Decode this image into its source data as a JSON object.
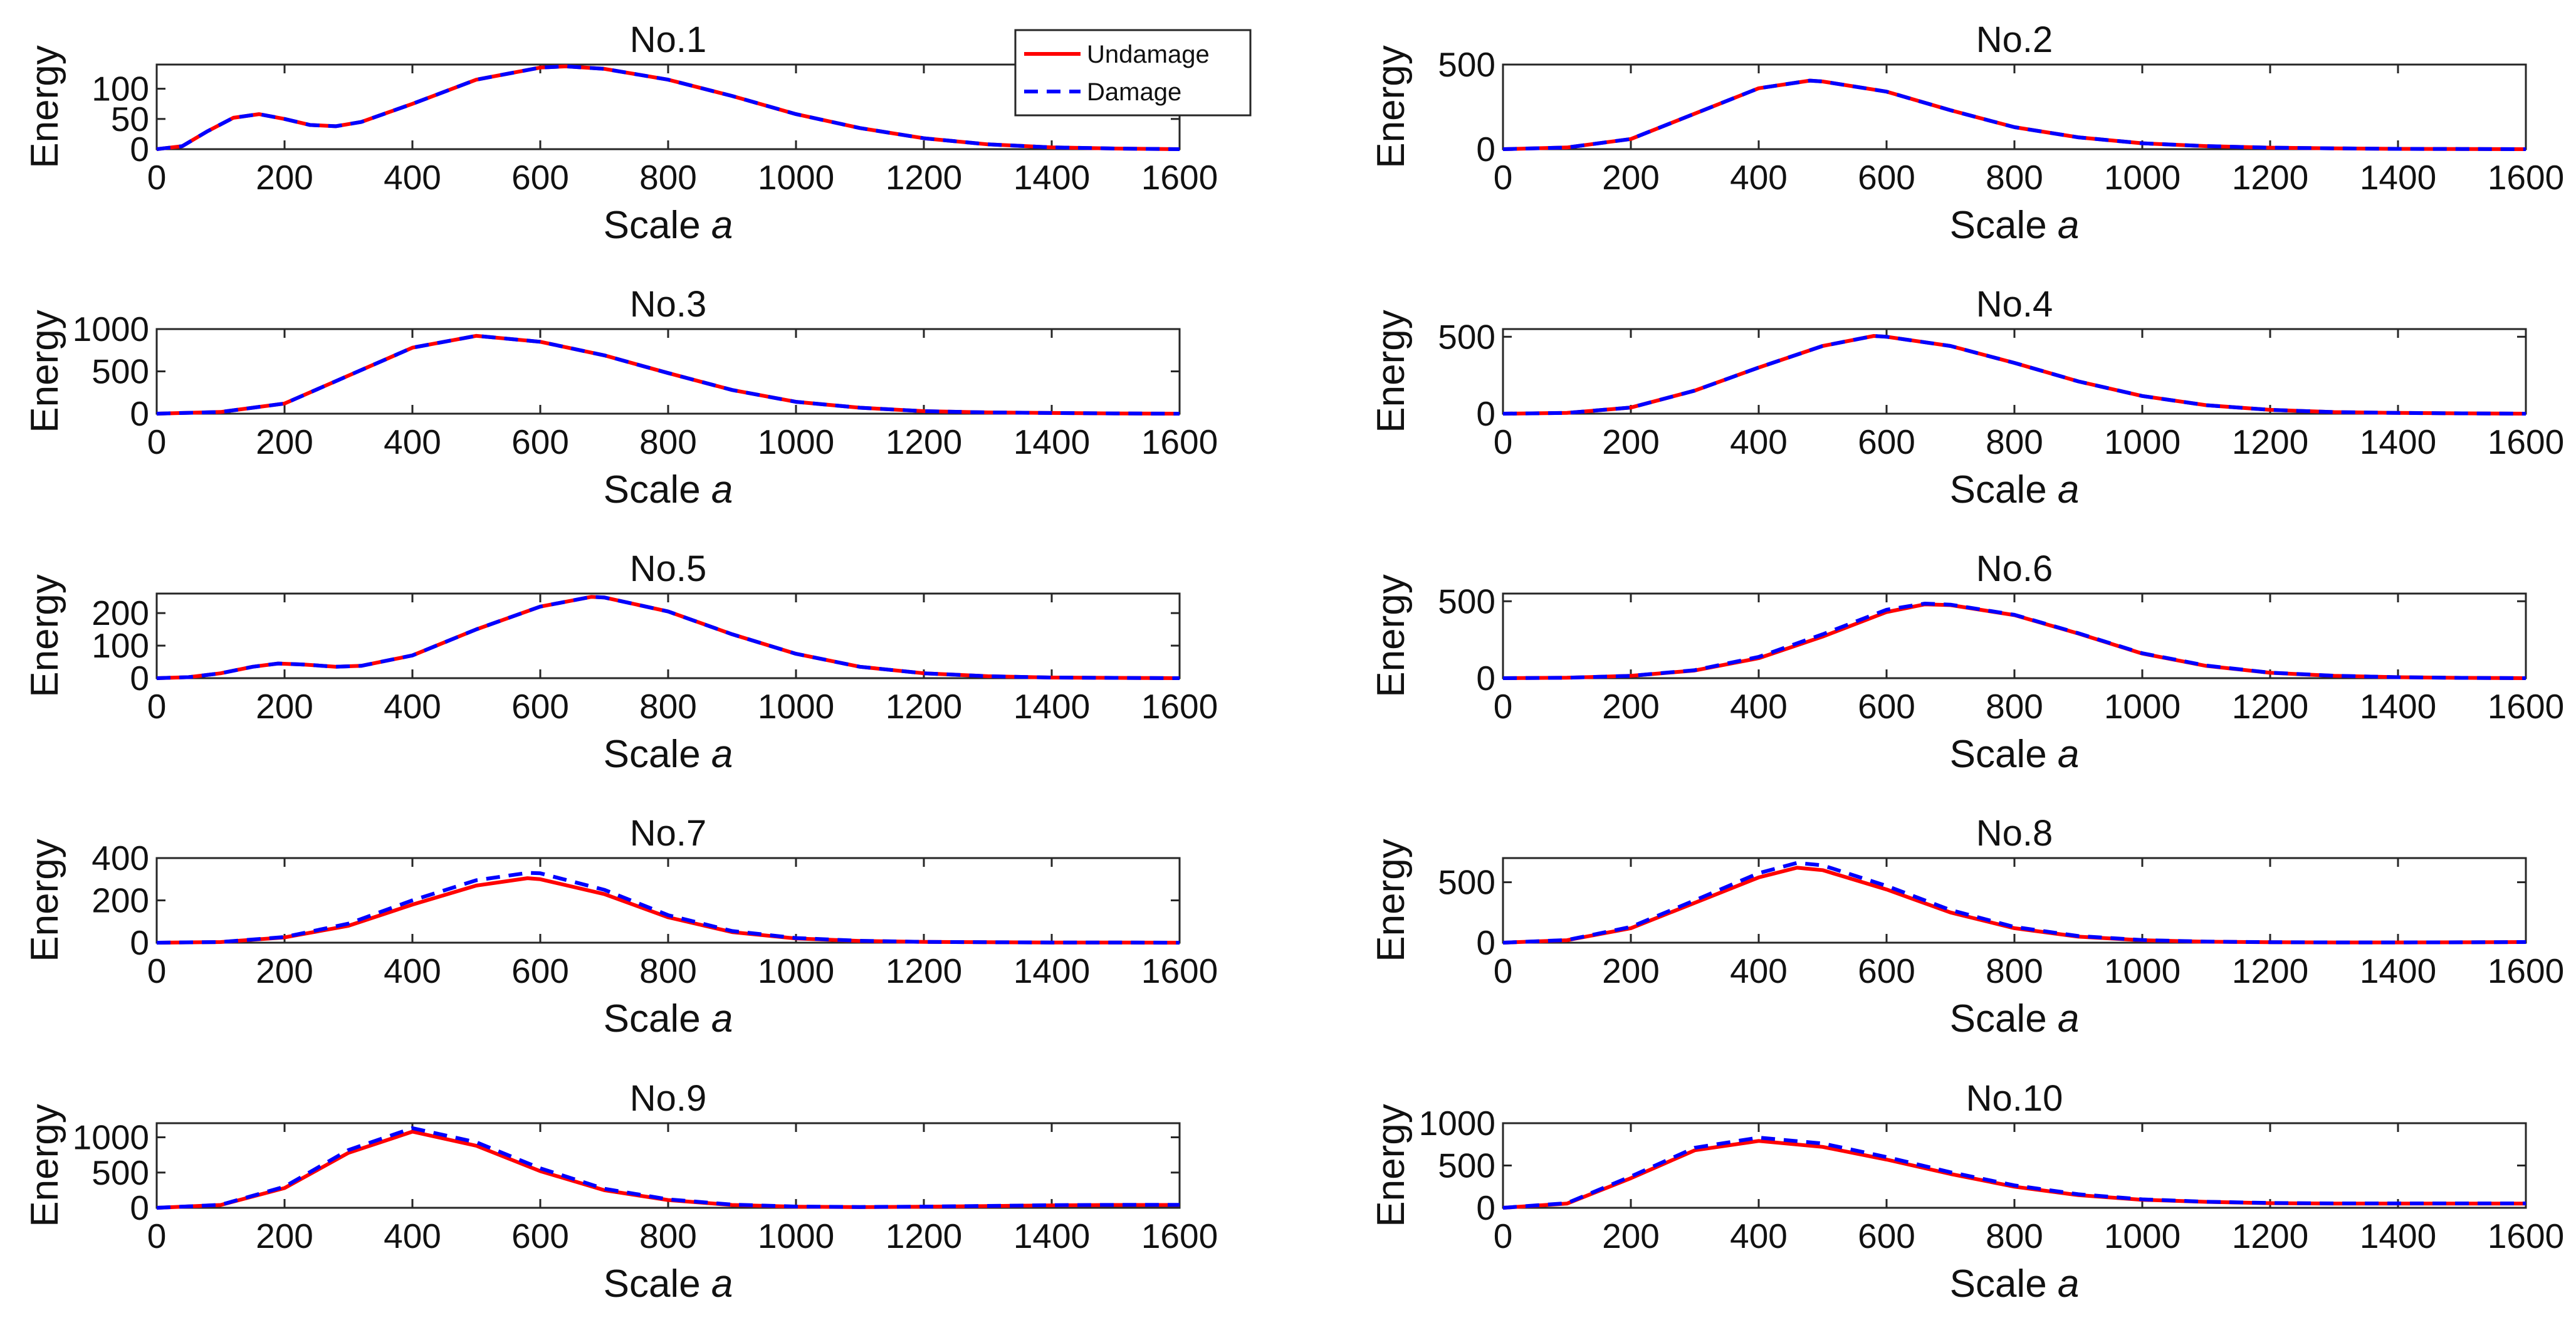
{
  "figure": {
    "legend": {
      "undamage_label": "Undamage",
      "damage_label": "Damage",
      "placement": "top-right of first panel"
    },
    "colors": {
      "undamage": "#ff0000",
      "damage": "#0000ff",
      "axis": "#262626"
    }
  },
  "chart_data": [
    {
      "type": "line",
      "title": "No.1",
      "xlabel": "Scale",
      "xlabel_var": "a",
      "ylabel": "Energy",
      "xlim": [
        0,
        1600
      ],
      "ylim": [
        0,
        140
      ],
      "xticks": [
        0,
        200,
        400,
        600,
        800,
        1000,
        1200,
        1400,
        1600
      ],
      "yticks": [
        0,
        50,
        100
      ],
      "x": [
        0,
        40,
        80,
        120,
        160,
        200,
        240,
        280,
        320,
        400,
        500,
        600,
        640,
        700,
        800,
        900,
        1000,
        1100,
        1200,
        1300,
        1400,
        1500,
        1600
      ],
      "series": [
        {
          "name": "Undamage",
          "values": [
            0,
            5,
            30,
            52,
            58,
            50,
            40,
            38,
            45,
            75,
            115,
            135,
            137,
            133,
            115,
            88,
            58,
            35,
            18,
            8,
            3,
            1,
            0
          ]
        },
        {
          "name": "Damage",
          "values": [
            0,
            5,
            30,
            52,
            58,
            50,
            40,
            38,
            45,
            75,
            115,
            135,
            137,
            133,
            115,
            88,
            58,
            35,
            18,
            8,
            3,
            1,
            0
          ]
        }
      ]
    },
    {
      "type": "line",
      "title": "No.2",
      "xlabel": "Scale",
      "xlabel_var": "a",
      "ylabel": "Energy",
      "xlim": [
        0,
        1600
      ],
      "ylim": [
        0,
        500
      ],
      "xticks": [
        0,
        200,
        400,
        600,
        800,
        1000,
        1200,
        1400,
        1600
      ],
      "yticks": [
        0,
        500
      ],
      "x": [
        0,
        100,
        200,
        300,
        400,
        480,
        500,
        600,
        700,
        800,
        900,
        1000,
        1100,
        1200,
        1300,
        1400,
        1500,
        1600
      ],
      "series": [
        {
          "name": "Undamage",
          "values": [
            0,
            10,
            60,
            210,
            360,
            405,
            400,
            340,
            230,
            130,
            70,
            35,
            18,
            9,
            5,
            2,
            1,
            0
          ]
        },
        {
          "name": "Damage",
          "values": [
            0,
            10,
            60,
            210,
            360,
            405,
            400,
            340,
            230,
            130,
            70,
            35,
            18,
            9,
            5,
            2,
            1,
            0
          ]
        }
      ]
    },
    {
      "type": "line",
      "title": "No.3",
      "xlabel": "Scale",
      "xlabel_var": "a",
      "ylabel": "Energy",
      "xlim": [
        0,
        1600
      ],
      "ylim": [
        0,
        1000
      ],
      "xticks": [
        0,
        200,
        400,
        600,
        800,
        1000,
        1200,
        1400,
        1600
      ],
      "yticks": [
        0,
        500,
        1000
      ],
      "x": [
        0,
        100,
        200,
        300,
        400,
        500,
        600,
        700,
        800,
        900,
        1000,
        1100,
        1200,
        1300,
        1400,
        1500,
        1600
      ],
      "series": [
        {
          "name": "Undamage",
          "values": [
            0,
            20,
            120,
            450,
            780,
            920,
            850,
            690,
            480,
            280,
            140,
            70,
            30,
            15,
            8,
            3,
            0
          ]
        },
        {
          "name": "Damage",
          "values": [
            0,
            20,
            120,
            450,
            780,
            920,
            850,
            690,
            480,
            280,
            140,
            70,
            30,
            15,
            8,
            3,
            0
          ]
        }
      ]
    },
    {
      "type": "line",
      "title": "No.4",
      "xlabel": "Scale",
      "xlabel_var": "a",
      "ylabel": "Energy",
      "xlim": [
        0,
        1600
      ],
      "ylim": [
        0,
        550
      ],
      "xticks": [
        0,
        200,
        400,
        600,
        800,
        1000,
        1200,
        1400,
        1600
      ],
      "yticks": [
        0,
        500
      ],
      "x": [
        0,
        100,
        200,
        300,
        400,
        500,
        580,
        600,
        700,
        800,
        900,
        1000,
        1100,
        1200,
        1300,
        1400,
        1500,
        1600
      ],
      "series": [
        {
          "name": "Undamage",
          "values": [
            0,
            5,
            40,
            150,
            300,
            440,
            505,
            500,
            440,
            330,
            210,
            115,
            55,
            25,
            10,
            5,
            2,
            0
          ]
        },
        {
          "name": "Damage",
          "values": [
            0,
            5,
            40,
            150,
            300,
            440,
            505,
            500,
            440,
            330,
            210,
            115,
            55,
            25,
            10,
            5,
            2,
            0
          ]
        }
      ]
    },
    {
      "type": "line",
      "title": "No.5",
      "xlabel": "Scale",
      "xlabel_var": "a",
      "ylabel": "Energy",
      "xlim": [
        0,
        1600
      ],
      "ylim": [
        0,
        260
      ],
      "xticks": [
        0,
        200,
        400,
        600,
        800,
        1000,
        1200,
        1400,
        1600
      ],
      "yticks": [
        0,
        100,
        200
      ],
      "x": [
        0,
        50,
        100,
        150,
        190,
        230,
        280,
        320,
        400,
        500,
        600,
        680,
        700,
        800,
        900,
        1000,
        1100,
        1200,
        1300,
        1400,
        1500,
        1600
      ],
      "series": [
        {
          "name": "Undamage",
          "values": [
            0,
            3,
            15,
            35,
            45,
            42,
            35,
            38,
            70,
            150,
            220,
            250,
            248,
            205,
            135,
            75,
            35,
            15,
            6,
            2,
            1,
            0
          ]
        },
        {
          "name": "Damage",
          "values": [
            0,
            3,
            15,
            35,
            45,
            42,
            35,
            38,
            70,
            150,
            220,
            250,
            248,
            205,
            135,
            75,
            35,
            15,
            6,
            2,
            1,
            0
          ]
        }
      ]
    },
    {
      "type": "line",
      "title": "No.6",
      "xlabel": "Scale",
      "xlabel_var": "a",
      "ylabel": "Energy",
      "xlim": [
        0,
        1600
      ],
      "ylim": [
        0,
        550
      ],
      "xticks": [
        0,
        200,
        400,
        600,
        800,
        1000,
        1200,
        1400,
        1600
      ],
      "yticks": [
        0,
        500
      ],
      "x": [
        0,
        100,
        200,
        300,
        400,
        500,
        600,
        660,
        700,
        800,
        900,
        1000,
        1100,
        1200,
        1300,
        1400,
        1500,
        1600
      ],
      "series": [
        {
          "name": "Undamage",
          "values": [
            0,
            3,
            15,
            50,
            130,
            270,
            430,
            480,
            475,
            410,
            290,
            160,
            80,
            35,
            15,
            6,
            2,
            0
          ]
        },
        {
          "name": "Damage",
          "values": [
            0,
            3,
            15,
            52,
            138,
            285,
            445,
            485,
            478,
            412,
            292,
            162,
            82,
            36,
            16,
            6,
            2,
            0
          ]
        }
      ]
    },
    {
      "type": "line",
      "title": "No.7",
      "xlabel": "Scale",
      "xlabel_var": "a",
      "ylabel": "Energy",
      "xlim": [
        0,
        1600
      ],
      "ylim": [
        0,
        400
      ],
      "xticks": [
        0,
        200,
        400,
        600,
        800,
        1000,
        1200,
        1400,
        1600
      ],
      "yticks": [
        0,
        200,
        400
      ],
      "x": [
        0,
        100,
        200,
        300,
        400,
        500,
        580,
        600,
        700,
        800,
        900,
        1000,
        1100,
        1200,
        1300,
        1400,
        1500,
        1600
      ],
      "series": [
        {
          "name": "Undamage",
          "values": [
            0,
            3,
            25,
            80,
            180,
            270,
            305,
            300,
            230,
            120,
            50,
            20,
            8,
            4,
            2,
            1,
            1,
            0
          ]
        },
        {
          "name": "Damage",
          "values": [
            0,
            3,
            27,
            90,
            200,
            295,
            330,
            328,
            250,
            130,
            55,
            22,
            9,
            4,
            2,
            1,
            1,
            0
          ]
        }
      ]
    },
    {
      "type": "line",
      "title": "No.8",
      "xlabel": "Scale",
      "xlabel_var": "a",
      "ylabel": "Energy",
      "xlim": [
        0,
        1600
      ],
      "ylim": [
        0,
        700
      ],
      "xticks": [
        0,
        200,
        400,
        600,
        800,
        1000,
        1200,
        1400,
        1600
      ],
      "yticks": [
        0,
        500
      ],
      "x": [
        0,
        100,
        200,
        300,
        400,
        460,
        500,
        600,
        700,
        800,
        900,
        1000,
        1100,
        1200,
        1300,
        1400,
        1500,
        1600
      ],
      "series": [
        {
          "name": "Undamage",
          "values": [
            0,
            20,
            120,
            330,
            540,
            620,
            600,
            440,
            250,
            120,
            50,
            20,
            8,
            4,
            2,
            2,
            3,
            5
          ]
        },
        {
          "name": "Damage",
          "values": [
            0,
            22,
            130,
            350,
            575,
            660,
            640,
            470,
            270,
            130,
            55,
            22,
            9,
            4,
            2,
            2,
            3,
            5
          ]
        }
      ]
    },
    {
      "type": "line",
      "title": "No.9",
      "xlabel": "Scale",
      "xlabel_var": "a",
      "ylabel": "Energy",
      "xlim": [
        0,
        1600
      ],
      "ylim": [
        0,
        1200
      ],
      "xticks": [
        0,
        200,
        400,
        600,
        800,
        1000,
        1200,
        1400,
        1600
      ],
      "yticks": [
        0,
        500,
        1000
      ],
      "x": [
        0,
        100,
        200,
        300,
        400,
        500,
        600,
        700,
        800,
        900,
        1000,
        1100,
        1200,
        1300,
        1400,
        1500,
        1600
      ],
      "series": [
        {
          "name": "Undamage",
          "values": [
            0,
            40,
            280,
            780,
            1080,
            880,
            520,
            250,
            110,
            40,
            15,
            10,
            15,
            25,
            35,
            40,
            40
          ]
        },
        {
          "name": "Damage",
          "values": [
            0,
            42,
            300,
            820,
            1130,
            930,
            560,
            270,
            120,
            45,
            18,
            12,
            17,
            27,
            37,
            42,
            42
          ]
        }
      ]
    },
    {
      "type": "line",
      "title": "No.10",
      "xlabel": "Scale",
      "xlabel_var": "a",
      "ylabel": "Energy",
      "xlim": [
        0,
        1600
      ],
      "ylim": [
        0,
        1000
      ],
      "xticks": [
        0,
        200,
        400,
        600,
        800,
        1000,
        1200,
        1400,
        1600
      ],
      "yticks": [
        0,
        500,
        1000
      ],
      "x": [
        0,
        100,
        200,
        300,
        400,
        500,
        600,
        700,
        800,
        900,
        1000,
        1100,
        1200,
        1300,
        1400,
        1500,
        1600
      ],
      "series": [
        {
          "name": "Undamage",
          "values": [
            0,
            50,
            350,
            680,
            790,
            720,
            570,
            400,
            250,
            150,
            95,
            70,
            55,
            50,
            50,
            50,
            50
          ]
        },
        {
          "name": "Damage",
          "values": [
            0,
            55,
            370,
            710,
            830,
            760,
            600,
            420,
            265,
            160,
            100,
            72,
            57,
            52,
            52,
            52,
            52
          ]
        }
      ]
    }
  ]
}
